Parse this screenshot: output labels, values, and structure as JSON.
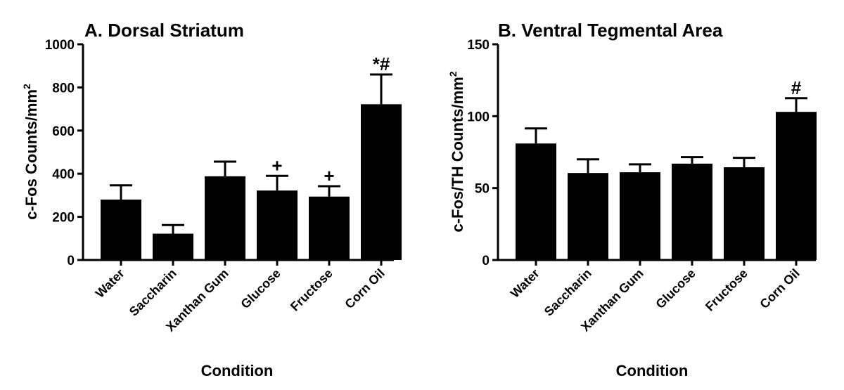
{
  "chart_data": [
    {
      "type": "bar",
      "title": "A. Dorsal Striatum",
      "xlabel": "Condition",
      "ylabel": "c-Fos Counts/mm",
      "ylabel_superscript": "2",
      "ylim": [
        0,
        1000
      ],
      "yticks": [
        0,
        200,
        400,
        600,
        800,
        1000
      ],
      "categories": [
        "Water",
        "Saccharin",
        "Xanthan Gum",
        "Glucose",
        "Fructose",
        "Corn Oil"
      ],
      "values": [
        280,
        122,
        388,
        322,
        294,
        722
      ],
      "errors": [
        66,
        40,
        68,
        68,
        48,
        138
      ],
      "annotations": [
        "",
        "",
        "",
        "+",
        "+",
        "*#"
      ],
      "bar_color": "#000000"
    },
    {
      "type": "bar",
      "title": "B. Ventral Tegmental Area",
      "xlabel": "Condition",
      "ylabel": "c-Fos/TH Counts/mm",
      "ylabel_superscript": "2",
      "ylim": [
        0,
        150
      ],
      "yticks": [
        0,
        50,
        100,
        150
      ],
      "categories": [
        "Water",
        "Saccharin",
        "Xanthan Gum",
        "Glucose",
        "Fructose",
        "Corn Oil"
      ],
      "values": [
        81,
        60.5,
        61,
        67,
        64.5,
        103
      ],
      "errors": [
        10.5,
        9.5,
        5.5,
        4.5,
        6.5,
        9.5
      ],
      "annotations": [
        "",
        "",
        "",
        "",
        "",
        "#"
      ],
      "bar_color": "#000000"
    }
  ]
}
